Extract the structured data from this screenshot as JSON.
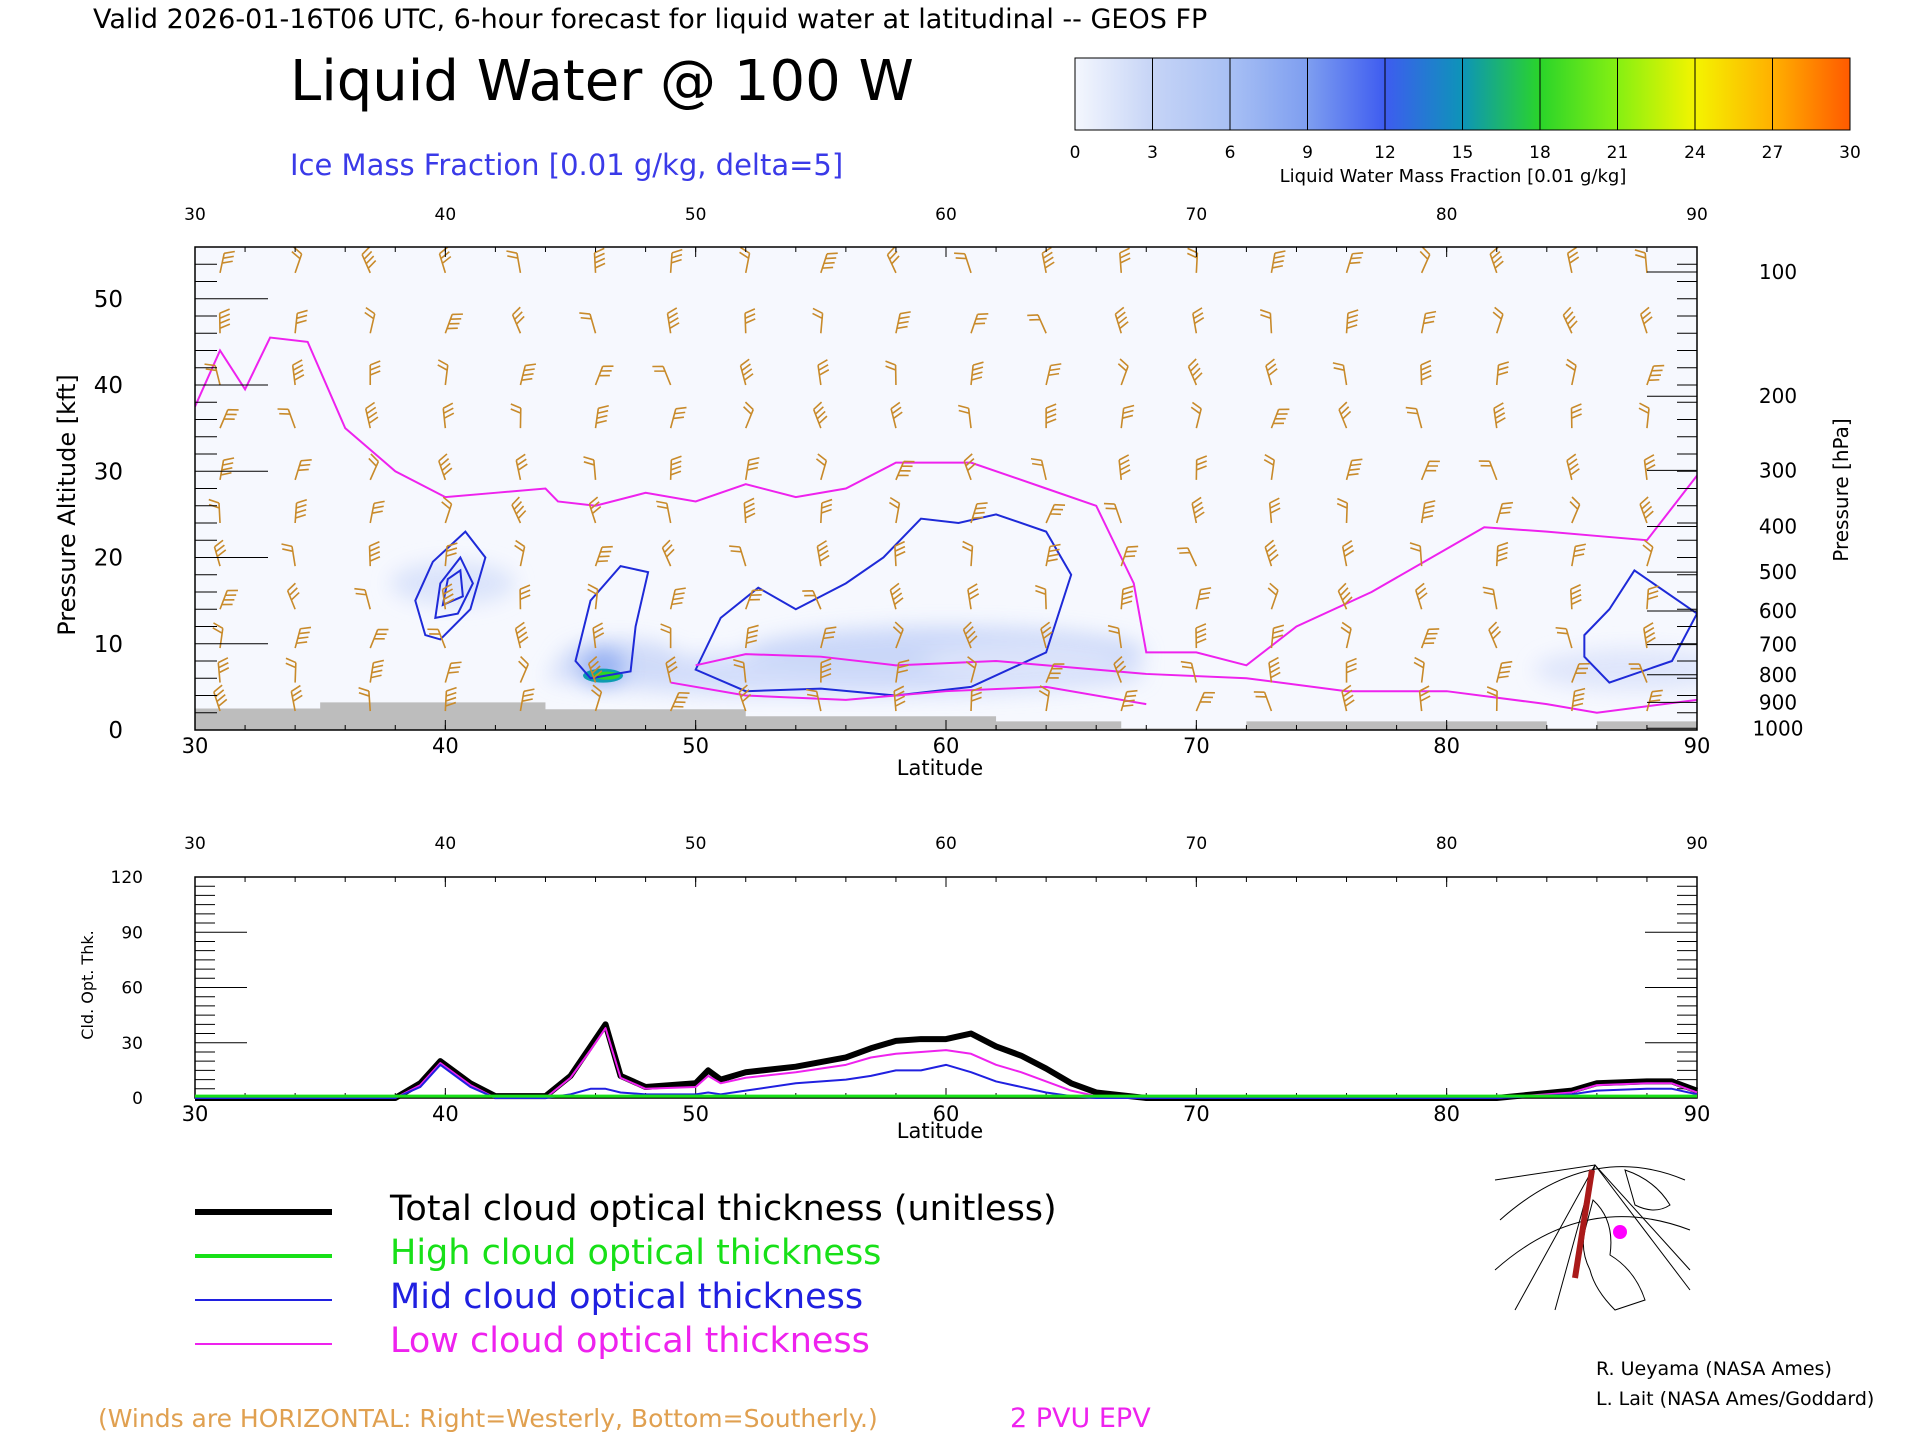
{
  "header": {
    "valid_line": "Valid 2026-01-16T06 UTC, 6-hour forecast for liquid water at latitudinal -- GEOS FP",
    "title": "Liquid Water @ 100 W",
    "subtitle": "Ice Mass Fraction [0.01 g/kg, delta=5]"
  },
  "colorbar": {
    "label": "Liquid Water Mass Fraction [0.01 g/kg]",
    "ticks": [
      "0",
      "3",
      "6",
      "9",
      "12",
      "15",
      "18",
      "21",
      "24",
      "27",
      "30"
    ],
    "colors": [
      "#f4f7fe",
      "#c6d4f6",
      "#a8c0f4",
      "#7e9ef0",
      "#3e5cf0",
      "#0d94b8",
      "#2ad42a",
      "#86f012",
      "#f4f400",
      "#ffb000",
      "#ff5a00"
    ]
  },
  "footer": {
    "winds_note": "(Winds are HORIZONTAL: Right=Westerly, Bottom=Southerly.)",
    "epv_label": "2 PVU EPV",
    "credit1": "R. Ueyama (NASA Ames)",
    "credit2": "L. Lait (NASA Ames/Goddard)"
  },
  "legend": [
    {
      "label": "Total cloud optical thickness (unitless)",
      "color": "#000000",
      "width": 6
    },
    {
      "label": "High cloud optical thickness",
      "color": "#18e018",
      "width": 4
    },
    {
      "label": "Mid cloud optical thickness",
      "color": "#2020e0",
      "width": 2
    },
    {
      "label": "Low cloud optical thickness",
      "color": "#ee22ee",
      "width": 2
    }
  ],
  "chart_data": [
    {
      "type": "heatmap",
      "title": "Liquid Water @ 100 W",
      "xlabel": "Latitude",
      "ylabel": "Pressure Altitude [kft]",
      "ylabel_right": "Pressure [hPa]",
      "xlim": [
        30,
        90
      ],
      "ylim": [
        0,
        56
      ],
      "x_ticks": [
        30,
        40,
        50,
        60,
        70,
        80,
        90
      ],
      "y_ticks": [
        0,
        10,
        20,
        30,
        40,
        50
      ],
      "pressure_ticks": [
        {
          "p": "100",
          "kft": 53.1
        },
        {
          "p": "200",
          "kft": 38.7
        },
        {
          "p": "300",
          "kft": 30.1
        },
        {
          "p": "400",
          "kft": 23.6
        },
        {
          "p": "500",
          "kft": 18.3
        },
        {
          "p": "600",
          "kft": 13.8
        },
        {
          "p": "700",
          "kft": 9.9
        },
        {
          "p": "800",
          "kft": 6.4
        },
        {
          "p": "900",
          "kft": 3.2
        },
        {
          "p": "1000",
          "kft": 0.2
        }
      ],
      "liquid_water_peak": {
        "lat": 46.3,
        "kft": 6.3,
        "value": 17
      },
      "terrain_kft": [
        [
          30,
          2.5
        ],
        [
          35,
          2.5
        ],
        [
          35,
          3.2
        ],
        [
          44,
          3.2
        ],
        [
          44,
          2.4
        ],
        [
          52,
          2.4
        ],
        [
          52,
          1.6
        ],
        [
          62,
          1.6
        ],
        [
          62,
          1.0
        ],
        [
          67,
          1.0
        ],
        [
          67,
          0.2
        ],
        [
          72,
          0.2
        ],
        [
          72,
          1.0
        ],
        [
          84,
          1.0
        ],
        [
          84,
          0.2
        ],
        [
          86,
          0.2
        ],
        [
          86,
          1.0
        ],
        [
          90,
          1.0
        ]
      ],
      "epv_2pvu_kft": [
        [
          30,
          37.5
        ],
        [
          31,
          44
        ],
        [
          32,
          39.5
        ],
        [
          33,
          45.5
        ],
        [
          34.5,
          45
        ],
        [
          36,
          35
        ],
        [
          38,
          30
        ],
        [
          40,
          27
        ],
        [
          42,
          27.5
        ],
        [
          44,
          28
        ],
        [
          44.5,
          26.5
        ],
        [
          46,
          26
        ],
        [
          48,
          27.5
        ],
        [
          50,
          26.5
        ],
        [
          52,
          28.5
        ],
        [
          54,
          27
        ],
        [
          56,
          28
        ],
        [
          58,
          31
        ],
        [
          61,
          31
        ],
        [
          64,
          28
        ],
        [
          66,
          26
        ],
        [
          67,
          20
        ],
        [
          67.5,
          17
        ],
        [
          68,
          9
        ],
        [
          70,
          9
        ],
        [
          72,
          7.5
        ],
        [
          74,
          12
        ],
        [
          77,
          16
        ],
        [
          80,
          21
        ],
        [
          81.5,
          23.5
        ],
        [
          84,
          23
        ],
        [
          86,
          22.5
        ],
        [
          88,
          22
        ],
        [
          90,
          29.5
        ]
      ],
      "ice_contours": [
        {
          "label": "ice-contour-a",
          "pts": [
            [
              39.2,
              11
            ],
            [
              38.8,
              15
            ],
            [
              39.5,
              19.5
            ],
            [
              40.8,
              23
            ],
            [
              41.6,
              20
            ],
            [
              41,
              14
            ],
            [
              39.8,
              10.5
            ]
          ]
        },
        {
          "label": "ice-contour-b",
          "pts": [
            [
              45.2,
              8
            ],
            [
              45.8,
              15
            ],
            [
              47,
              19
            ],
            [
              48.1,
              18.3
            ],
            [
              47.6,
              12
            ],
            [
              47.4,
              6.8
            ],
            [
              45.8,
              6
            ]
          ]
        },
        {
          "label": "ice-contour-c",
          "pts": [
            [
              50,
              7
            ],
            [
              51,
              13
            ],
            [
              52.5,
              16.5
            ],
            [
              54,
              14
            ],
            [
              56,
              17
            ],
            [
              57.5,
              20
            ],
            [
              59,
              24.5
            ],
            [
              60.5,
              24
            ],
            [
              62,
              25
            ],
            [
              64,
              23
            ],
            [
              65,
              18
            ],
            [
              64,
              9
            ],
            [
              61,
              5
            ],
            [
              58,
              4
            ],
            [
              55,
              4.8
            ],
            [
              52,
              4.5
            ],
            [
              50,
              7
            ]
          ]
        },
        {
          "label": "ice-contour-d",
          "pts": [
            [
              85.5,
              11
            ],
            [
              86.5,
              14
            ],
            [
              87.5,
              18.5
            ],
            [
              90,
              13.5
            ],
            [
              89,
              8
            ],
            [
              86.5,
              5.5
            ],
            [
              85.5,
              8.5
            ]
          ]
        }
      ],
      "wind_barb_rows_kft": [
        53,
        46,
        40,
        35,
        29,
        24,
        19,
        14,
        9.5,
        5.5,
        2.2
      ],
      "wind_barb_spacing_deg": 3
    },
    {
      "type": "line",
      "xlabel": "Latitude",
      "ylabel": "Cld. Opt. Thk.",
      "xlim": [
        30,
        90
      ],
      "ylim": [
        0,
        120
      ],
      "x_ticks": [
        30,
        40,
        50,
        60,
        70,
        80,
        90
      ],
      "y_ticks": [
        0,
        30,
        60,
        90,
        120
      ],
      "x": [
        30,
        38,
        39,
        39.8,
        41,
        42,
        44,
        45,
        45.8,
        46.4,
        47,
        48,
        50,
        50.5,
        51,
        52,
        54,
        56,
        57,
        58,
        59,
        60,
        61,
        62,
        63,
        64,
        65,
        66,
        68,
        70,
        75,
        82,
        85,
        86,
        88,
        89,
        90
      ],
      "series": [
        {
          "name": "Total cloud optical thickness (unitless)",
          "color": "#000000",
          "width": 6,
          "values": [
            0,
            0,
            8,
            20,
            8,
            1,
            1,
            12,
            28,
            40,
            12,
            6,
            8,
            15,
            10,
            14,
            17,
            22,
            27,
            31,
            32,
            32,
            35,
            28,
            23,
            16,
            8,
            3,
            0,
            0,
            0,
            0,
            4,
            8,
            9,
            9,
            4
          ]
        },
        {
          "name": "High cloud optical thickness",
          "color": "#18e018",
          "width": 3,
          "values": [
            1,
            1,
            1,
            1,
            1,
            1,
            1,
            1,
            1,
            1,
            1,
            1,
            1,
            1,
            1,
            1,
            1,
            1,
            1,
            1,
            1,
            1,
            1,
            1,
            1,
            1,
            1,
            1,
            1,
            1,
            1,
            1,
            1,
            1,
            1,
            1,
            1
          ]
        },
        {
          "name": "Mid cloud optical thickness",
          "color": "#2020e0",
          "width": 2,
          "values": [
            0,
            0,
            6,
            18,
            6,
            0,
            0,
            2,
            5,
            5,
            3,
            2,
            2,
            3,
            2,
            4,
            8,
            10,
            12,
            15,
            15,
            18,
            14,
            9,
            6,
            3,
            1,
            0,
            0,
            0,
            0,
            0,
            2,
            4,
            5,
            5,
            2
          ]
        },
        {
          "name": "Low cloud optical thickness",
          "color": "#ee22ee",
          "width": 2,
          "values": [
            0,
            0,
            7,
            19,
            7,
            0,
            0,
            11,
            26,
            38,
            11,
            5,
            6,
            12,
            8,
            11,
            14,
            18,
            22,
            24,
            25,
            26,
            24,
            18,
            14,
            9,
            4,
            1,
            0,
            0,
            0,
            0,
            3,
            7,
            8,
            8,
            3
          ]
        }
      ]
    }
  ]
}
